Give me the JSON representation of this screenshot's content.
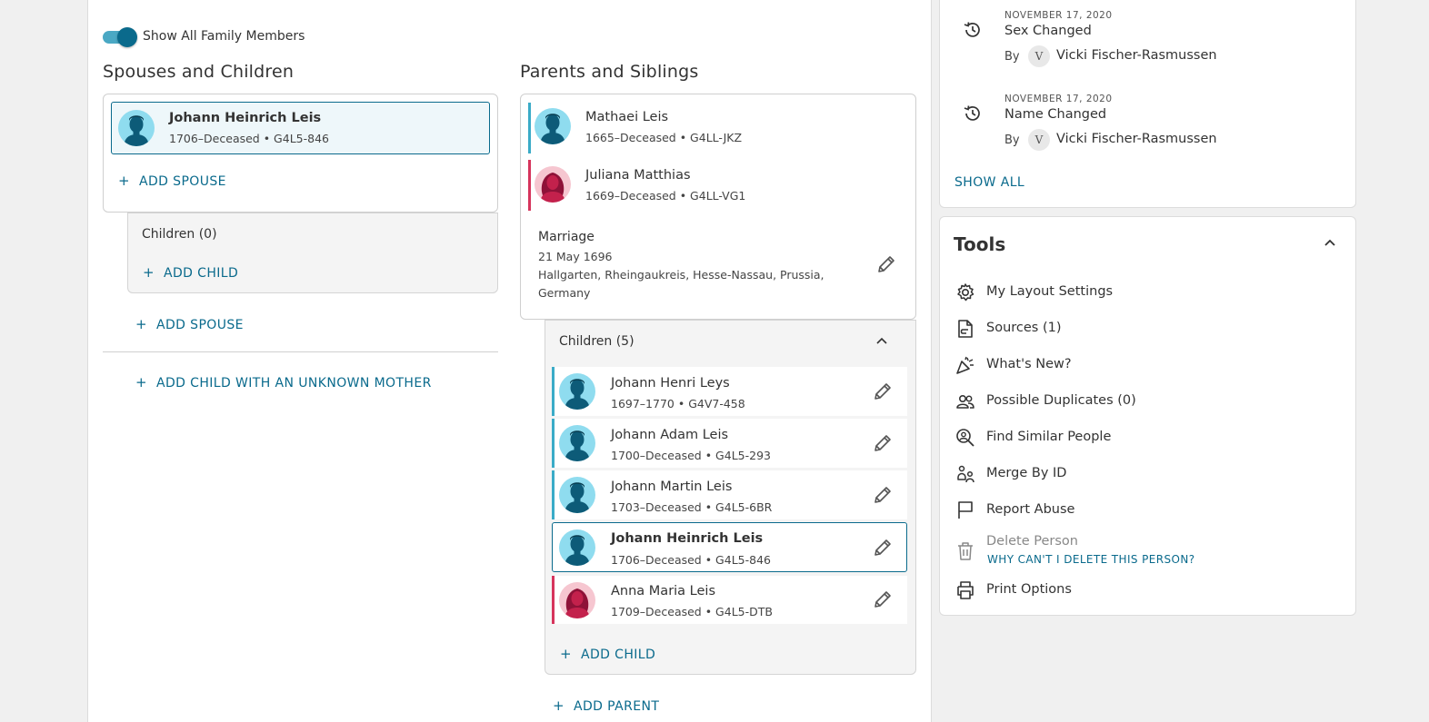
{
  "family": {
    "show_all_label": "Show All Family Members",
    "spouses_heading": "Spouses and Children",
    "parents_heading": "Parents and Siblings",
    "spouse_person": {
      "name": "Johann Heinrich Leis",
      "meta": "1706–Deceased •  G4L5-846"
    },
    "add_spouse_inner": "ADD SPOUSE",
    "children_zero": "Children (0)",
    "add_child_inner": "ADD CHILD",
    "add_spouse_outer": "ADD SPOUSE",
    "add_child_unknown_mother": "ADD CHILD WITH AN UNKNOWN MOTHER",
    "father": {
      "name": "Mathaei Leis",
      "meta": "1665–Deceased •  G4LL-JKZ"
    },
    "mother": {
      "name": "Juliana Matthias",
      "meta": "1669–Deceased •  G4LL-VG1"
    },
    "marriage": {
      "label": "Marriage",
      "date": "21 May 1696",
      "place_line1": "Hallgarten, Rheingaukreis, Hesse-Nassau, Prussia,",
      "place_line2": "Germany"
    },
    "children_label": "Children (5)",
    "children": [
      {
        "name": "Johann Henri Leys",
        "meta": "1697–1770 •  G4V7-458",
        "sex": "m"
      },
      {
        "name": "Johann Adam Leis",
        "meta": "1700–Deceased •  G4L5-293",
        "sex": "m"
      },
      {
        "name": "Johann Martin Leis",
        "meta": "1703–Deceased •  G4L5-6BR",
        "sex": "m"
      },
      {
        "name": "Johann Heinrich Leis",
        "meta": "1706–Deceased •  G4L5-846",
        "sex": "m"
      },
      {
        "name": "Anna Maria Leis",
        "meta": "1709–Deceased •  G4L5-DTB",
        "sex": "f"
      }
    ],
    "add_child_parents": "ADD CHILD",
    "add_parent": "ADD PARENT"
  },
  "changes": {
    "items": [
      {
        "date": "NOVEMBER 17, 2020",
        "title": "Sex Changed",
        "by": "By",
        "avatar": "V",
        "user": "Vicki Fischer-Rasmussen"
      },
      {
        "date": "NOVEMBER 17, 2020",
        "title": "Name Changed",
        "by": "By",
        "avatar": "V",
        "user": "Vicki Fischer-Rasmussen"
      }
    ],
    "show_all": "SHOW ALL"
  },
  "tools": {
    "title": "Tools",
    "items": [
      {
        "label": "My Layout Settings",
        "icon": "gear-icon"
      },
      {
        "label": "Sources (1)",
        "icon": "source-document-icon"
      },
      {
        "label": "What's New?",
        "icon": "party-popper-icon"
      },
      {
        "label": "Possible Duplicates (0)",
        "icon": "people-icon"
      },
      {
        "label": "Find Similar People",
        "icon": "person-search-icon"
      },
      {
        "label": "Merge By ID",
        "icon": "merge-people-icon"
      },
      {
        "label": "Report Abuse",
        "icon": "flag-icon"
      },
      {
        "label": "Delete Person",
        "icon": "trash-icon"
      },
      {
        "label": "Print Options",
        "icon": "printer-icon"
      }
    ],
    "delete_help": "WHY CAN'T I DELETE THIS PERSON?"
  },
  "colors": {
    "accent": "#0a6a8c",
    "male": "#3aabc7",
    "female": "#d6345c"
  }
}
